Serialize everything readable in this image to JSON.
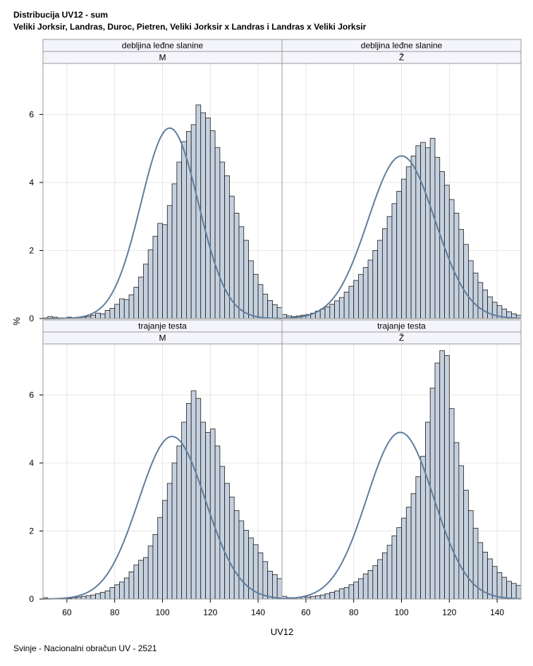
{
  "title_line1": "Distribucija UV12 - sum",
  "title_line2": "Veliki Jorksir, Landras, Duroc, Pietren, Veliki Jorksir x Landras i Landras x Veliki Jorksir",
  "footnote": "Svinje - Nacionalni obračun UV - 2521",
  "colors": {
    "bar_fill": "#c6d1df",
    "bar_stroke": "#1a1a1a",
    "curve": "#5f7d9e",
    "grid": "#e6e6e6",
    "header_bg": "#f4f4fb",
    "frame": "#9a9a9a"
  },
  "chart_data": {
    "type": "bar",
    "xlabel": "UV12",
    "ylabel": "%",
    "xlim": [
      50,
      150
    ],
    "ylim": [
      0,
      7.5
    ],
    "xticks": [
      60,
      80,
      100,
      120,
      140
    ],
    "yticks": [
      0,
      2,
      4,
      6
    ],
    "bin_start": 50,
    "bin_width": 2,
    "grid": true,
    "panels": [
      {
        "row_label": "debljina leđne slanine",
        "col_label": "M",
        "curve": {
          "mean": 103,
          "sd": 12,
          "peak": 5.6
        },
        "values": [
          0.02,
          0.06,
          0.04,
          0.02,
          0.02,
          0.04,
          0.02,
          0.03,
          0.04,
          0.06,
          0.1,
          0.16,
          0.14,
          0.24,
          0.3,
          0.42,
          0.58,
          0.56,
          0.7,
          0.92,
          1.22,
          1.6,
          2.02,
          2.42,
          2.8,
          2.76,
          3.32,
          3.96,
          4.6,
          5.2,
          5.5,
          5.7,
          6.28,
          6.05,
          5.9,
          5.52,
          5.03,
          4.6,
          4.2,
          3.6,
          3.1,
          2.7,
          2.3,
          1.7,
          1.3,
          1.0,
          0.72,
          0.53,
          0.41,
          0.32,
          0.24,
          0.18,
          0.11,
          0.06,
          0.04,
          0.03,
          0.02,
          0.01,
          0.01,
          0.0,
          0.0,
          0.0,
          0.0,
          0.0,
          0.0,
          0.0,
          0.0,
          0.0,
          0.0,
          0.0,
          0.0,
          0.0,
          0.0,
          0.0,
          0.0,
          0.0,
          0.0,
          0.0,
          0.0,
          0.0,
          0.0,
          0.0,
          0.0,
          0.0,
          0.0,
          0.0,
          0.0,
          0.0,
          0.0,
          0.0,
          0.0,
          0.0,
          0.0,
          0.0,
          0.0,
          0.0,
          0.0,
          0.0,
          0.0,
          0.0,
          0.0,
          0.0,
          0.0,
          0.0,
          0.0,
          0.0,
          0.0,
          0.0,
          0.0,
          0.0,
          0.0,
          0.0,
          0.0,
          0.0,
          0.0,
          0.0,
          0.0,
          0.0,
          0.0,
          0.0,
          0.0,
          0.0,
          0.0,
          0.0,
          0.0,
          0.0,
          0.0,
          0.0,
          0.0,
          0.0,
          0.0,
          0.0,
          0.0,
          0.0,
          0.0,
          0.0,
          0.0,
          0.0,
          0.0,
          0.0,
          0.0,
          0.0,
          0.0,
          0.0,
          0.0,
          0.0,
          0.0,
          0.0,
          0.0,
          0.0,
          0.0,
          0.0
        ]
      },
      {
        "row_label": "debljina leđne slanine",
        "col_label": "Ž",
        "curve": {
          "mean": 100,
          "sd": 14,
          "peak": 4.78
        },
        "values": [
          0.12,
          0.08,
          0.06,
          0.08,
          0.1,
          0.12,
          0.16,
          0.22,
          0.28,
          0.34,
          0.42,
          0.52,
          0.62,
          0.78,
          0.95,
          1.12,
          1.3,
          1.5,
          1.72,
          2.0,
          2.3,
          2.64,
          3.0,
          3.38,
          3.74,
          4.1,
          4.46,
          4.78,
          5.08,
          5.18,
          5.02,
          5.3,
          4.74,
          4.32,
          3.92,
          3.5,
          3.1,
          2.62,
          2.18,
          1.7,
          1.34,
          1.06,
          0.84,
          0.64,
          0.48,
          0.38,
          0.28,
          0.2,
          0.14,
          0.1,
          0.06,
          0.04,
          0.03,
          0.02,
          0.01,
          0.01,
          0.0,
          0.0,
          0.0,
          0.0,
          0.0,
          0.0,
          0.0,
          0.0,
          0.0,
          0.0,
          0.0,
          0.0,
          0.0,
          0.0,
          0.0,
          0.0,
          0.0,
          0.0,
          0.0,
          0.0,
          0.0,
          0.0,
          0.0,
          0.0,
          0.0,
          0.0,
          0.0,
          0.0,
          0.0,
          0.0,
          0.0,
          0.0,
          0.0,
          0.0,
          0.0,
          0.0,
          0.0,
          0.0,
          0.0,
          0.0,
          0.0,
          0.0,
          0.0,
          0.0,
          0.0,
          0.0,
          0.0,
          0.0,
          0.0,
          0.0,
          0.0,
          0.0,
          0.0,
          0.0,
          0.0,
          0.0,
          0.0,
          0.0,
          0.0,
          0.0,
          0.0,
          0.0,
          0.0,
          0.0,
          0.0,
          0.0,
          0.0,
          0.0,
          0.0,
          0.0,
          0.0,
          0.0,
          0.0,
          0.0,
          0.0,
          0.0,
          0.0,
          0.0,
          0.0,
          0.0,
          0.0,
          0.0,
          0.0,
          0.0,
          0.0,
          0.0,
          0.0,
          0.0,
          0.0,
          0.0,
          0.0,
          0.0,
          0.0,
          0.0,
          0.0,
          0.0
        ]
      },
      {
        "row_label": "trajanje testa",
        "col_label": "M",
        "curve": {
          "mean": 104,
          "sd": 14,
          "peak": 4.78
        },
        "values": [
          0.04,
          0.0,
          0.0,
          0.0,
          0.0,
          0.02,
          0.04,
          0.06,
          0.08,
          0.1,
          0.12,
          0.16,
          0.2,
          0.24,
          0.34,
          0.42,
          0.5,
          0.62,
          0.8,
          1.0,
          1.14,
          1.22,
          1.56,
          1.9,
          2.4,
          2.9,
          3.4,
          4.0,
          4.5,
          5.2,
          5.75,
          6.12,
          5.9,
          5.2,
          4.9,
          5.0,
          4.5,
          3.9,
          3.4,
          3.0,
          2.6,
          2.3,
          2.02,
          1.8,
          1.6,
          1.36,
          1.1,
          0.82,
          0.72,
          0.6,
          0.5,
          0.42,
          0.32,
          0.24,
          0.3,
          0.28,
          0.2,
          0.16,
          0.12,
          0.1,
          0.0,
          0.0,
          0.0,
          0.0,
          0.0,
          0.0,
          0.0,
          0.0,
          0.0,
          0.0,
          0.0,
          0.0,
          0.0,
          0.0,
          0.0,
          0.0,
          0.0,
          0.0,
          0.0,
          0.0,
          0.0,
          0.0,
          0.0,
          0.0,
          0.0,
          0.0,
          0.0,
          0.0,
          0.0,
          0.0,
          0.0,
          0.0,
          0.0,
          0.0,
          0.0,
          0.0,
          0.0,
          0.0,
          0.0,
          0.0,
          0.0,
          0.0,
          0.0,
          0.0,
          0.0,
          0.0,
          0.0,
          0.0,
          0.0,
          0.0,
          0.0,
          0.0,
          0.0,
          0.0,
          0.0,
          0.0,
          0.0,
          0.0,
          0.0,
          0.0,
          0.0,
          0.0,
          0.0,
          0.0,
          0.0,
          0.0,
          0.0,
          0.0,
          0.0,
          0.0,
          0.0,
          0.0,
          0.0,
          0.0,
          0.0,
          0.0,
          0.0,
          0.0,
          0.0,
          0.0,
          0.0,
          0.0,
          0.0,
          0.0,
          0.0,
          0.0,
          0.0,
          0.0,
          0.0,
          0.0
        ]
      },
      {
        "row_label": "trajanje testa",
        "col_label": "Ž",
        "curve": {
          "mean": 99.5,
          "sd": 14,
          "peak": 4.9
        },
        "values": [
          0.08,
          0.04,
          0.04,
          0.04,
          0.06,
          0.06,
          0.08,
          0.1,
          0.12,
          0.16,
          0.2,
          0.24,
          0.3,
          0.34,
          0.42,
          0.5,
          0.6,
          0.74,
          0.84,
          0.98,
          1.16,
          1.36,
          1.58,
          1.86,
          2.1,
          2.38,
          2.7,
          3.1,
          3.6,
          4.2,
          5.2,
          6.2,
          6.94,
          7.3,
          7.16,
          5.6,
          4.6,
          3.92,
          3.2,
          2.6,
          2.08,
          1.66,
          1.38,
          1.18,
          0.96,
          0.78,
          0.64,
          0.52,
          0.46,
          0.4,
          0.34,
          0.3,
          0.26,
          0.24,
          0.2,
          0.18,
          0.14,
          0.12,
          0.1,
          0.1,
          0.1,
          0.08,
          0.06,
          0.06,
          0.06,
          0.0,
          0.0,
          0.0,
          0.0,
          0.0,
          0.0,
          0.0,
          0.0,
          0.0,
          0.0,
          0.0,
          0.0,
          0.0,
          0.0,
          0.0,
          0.0,
          0.0,
          0.0,
          0.0,
          0.0,
          0.0,
          0.0,
          0.0,
          0.0,
          0.0,
          0.0,
          0.0,
          0.0,
          0.0,
          0.0,
          0.0,
          0.0,
          0.0,
          0.0,
          0.0,
          0.0,
          0.0,
          0.0,
          0.0,
          0.0,
          0.0,
          0.0,
          0.0,
          0.0,
          0.0,
          0.0,
          0.0,
          0.0,
          0.0,
          0.0,
          0.0,
          0.0,
          0.0,
          0.0,
          0.0,
          0.0,
          0.0,
          0.0,
          0.0,
          0.0,
          0.0,
          0.0,
          0.0,
          0.0,
          0.0,
          0.0,
          0.0,
          0.0,
          0.0,
          0.0,
          0.0,
          0.0,
          0.0,
          0.0,
          0.0,
          0.0,
          0.0,
          0.0,
          0.0,
          0.0,
          0.0,
          0.0,
          0.0,
          0.0
        ]
      }
    ]
  }
}
